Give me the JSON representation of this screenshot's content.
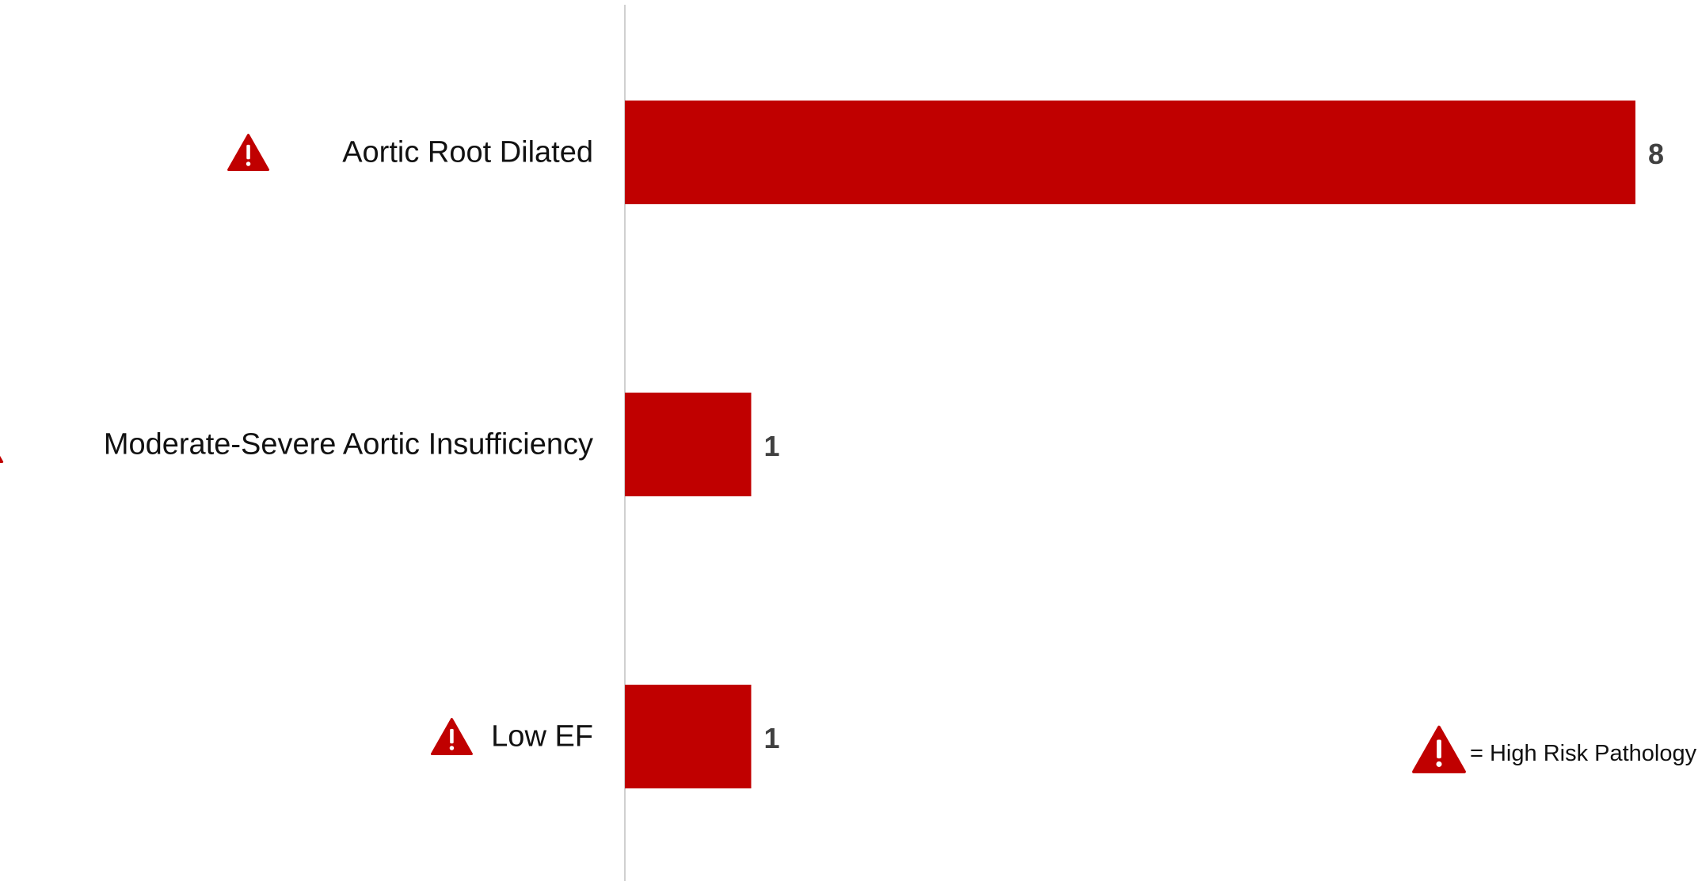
{
  "chart_data": {
    "type": "bar",
    "orientation": "horizontal",
    "categories": [
      "Aortic Root Dilated",
      "Moderate-Severe Aortic Insufficiency",
      "Low EF"
    ],
    "values": [
      8,
      1,
      1
    ],
    "high_risk": [
      true,
      true,
      true
    ],
    "title": "",
    "xlabel": "",
    "ylabel": "",
    "xlim": [
      0,
      8
    ],
    "grid": false,
    "data_labels": true,
    "bar_color": "#C00000",
    "axis_color": "#D0D0D0",
    "legend": {
      "icon": "warning-triangle-icon",
      "text": "= High Risk Pathology",
      "placement": "bottom-right"
    }
  },
  "colors": {
    "accent": "#C00000",
    "warning_icon": "#C00000",
    "value_text": "#404040",
    "label_text": "#111111"
  }
}
